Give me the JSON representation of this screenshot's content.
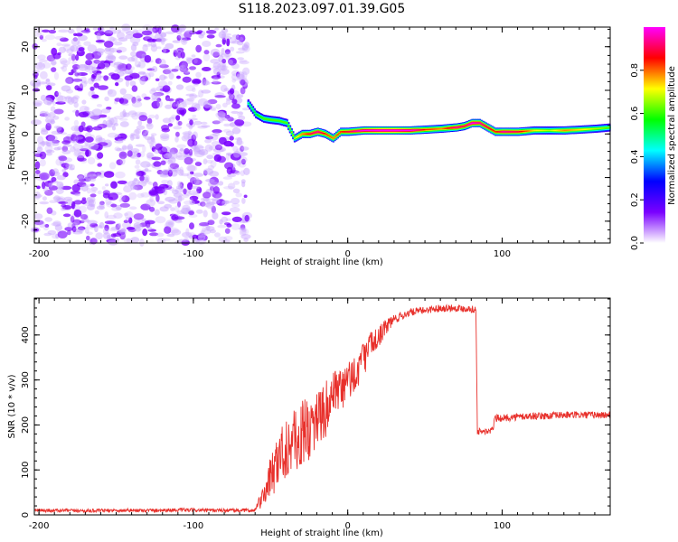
{
  "figure": {
    "title": "S118.2023.097.01.39.G05"
  },
  "chart_data": [
    {
      "type": "heatmap",
      "xlabel": "Height of straight line (km)",
      "ylabel": "Frequency (Hz)",
      "xlim": [
        -203,
        170
      ],
      "ylim": [
        -25,
        24.5
      ],
      "xticks": [
        -200,
        -100,
        0,
        100
      ],
      "yticks": [
        -20,
        -10,
        0,
        10,
        20
      ],
      "colorbar": {
        "label": "Normalized spectral amplitude",
        "range": [
          0,
          1
        ],
        "ticks": [
          0.0,
          0.2,
          0.4,
          0.6,
          0.8
        ],
        "colors": [
          "#ffffff",
          "#7a00ff",
          "#0000ff",
          "#00ffff",
          "#00ff00",
          "#ffff00",
          "#ff0000",
          "#ff00ff"
        ]
      },
      "noise_region": {
        "x": [
          -203,
          -65
        ],
        "y": [
          -25,
          24.5
        ],
        "level": 0.15
      },
      "signal_ridge": {
        "x": [
          -65,
          -60,
          -55,
          -50,
          -45,
          -40,
          -35,
          -30,
          -25,
          -20,
          -15,
          -10,
          -5,
          0,
          10,
          20,
          30,
          40,
          50,
          60,
          70,
          75,
          80,
          85,
          90,
          95,
          100,
          110,
          120,
          130,
          140,
          150,
          160,
          170
        ],
        "y": [
          7,
          4.5,
          3.5,
          3.2,
          3,
          2.5,
          -1,
          0,
          0,
          0.5,
          0,
          -1,
          0.5,
          0.5,
          0.8,
          0.8,
          0.8,
          0.8,
          1,
          1.2,
          1.5,
          1.8,
          2.5,
          2.5,
          1.5,
          0.5,
          0.5,
          0.5,
          0.8,
          0.8,
          0.8,
          1,
          1.2,
          1.5
        ],
        "amplitude": [
          0.45,
          0.5,
          0.55,
          0.55,
          0.55,
          0.55,
          0.6,
          0.7,
          0.8,
          0.85,
          0.75,
          0.7,
          0.75,
          0.8,
          0.9,
          0.95,
          0.95,
          0.9,
          0.75,
          0.7,
          0.85,
          0.8,
          0.9,
          0.85,
          0.8,
          0.75,
          0.85,
          0.8,
          0.65,
          0.6,
          0.7,
          0.65,
          0.6,
          0.55
        ]
      }
    },
    {
      "type": "line",
      "xlabel": "Height of straight line (km)",
      "ylabel": "SNR (10 * v/v)",
      "xlim": [
        -203,
        170
      ],
      "ylim": [
        0,
        482
      ],
      "xticks": [
        -200,
        -100,
        0,
        100
      ],
      "yticks": [
        0,
        100,
        200,
        300,
        400
      ],
      "color": "#e8302b",
      "series": [
        {
          "x": [
            -203,
            -190,
            -170,
            -150,
            -130,
            -110,
            -90,
            -70,
            -60,
            -55,
            -50,
            -45,
            -40,
            -35,
            -30,
            -25,
            -20,
            -15,
            -10,
            -5,
            0,
            5,
            10,
            15,
            20,
            25,
            30,
            40,
            50,
            60,
            70,
            80,
            83,
            84,
            85,
            90,
            94,
            95,
            100,
            110,
            120,
            130,
            140,
            150,
            160,
            170
          ],
          "y": [
            10,
            10,
            9,
            10,
            10,
            11,
            10,
            10,
            10,
            40,
            90,
            130,
            160,
            170,
            185,
            200,
            220,
            240,
            260,
            280,
            300,
            320,
            350,
            380,
            400,
            420,
            435,
            450,
            455,
            460,
            460,
            458,
            455,
            185,
            185,
            185,
            188,
            215,
            215,
            218,
            220,
            220,
            222,
            222,
            222,
            222
          ],
          "noise_amplitude": [
            4,
            4,
            4,
            4,
            4,
            4,
            4,
            4,
            4,
            25,
            60,
            80,
            90,
            100,
            95,
            90,
            85,
            80,
            75,
            70,
            60,
            55,
            50,
            40,
            30,
            20,
            12,
            8,
            8,
            8,
            8,
            8,
            8,
            8,
            8,
            8,
            8,
            8,
            8,
            8,
            8,
            8,
            8,
            8,
            8,
            8
          ]
        }
      ]
    }
  ]
}
